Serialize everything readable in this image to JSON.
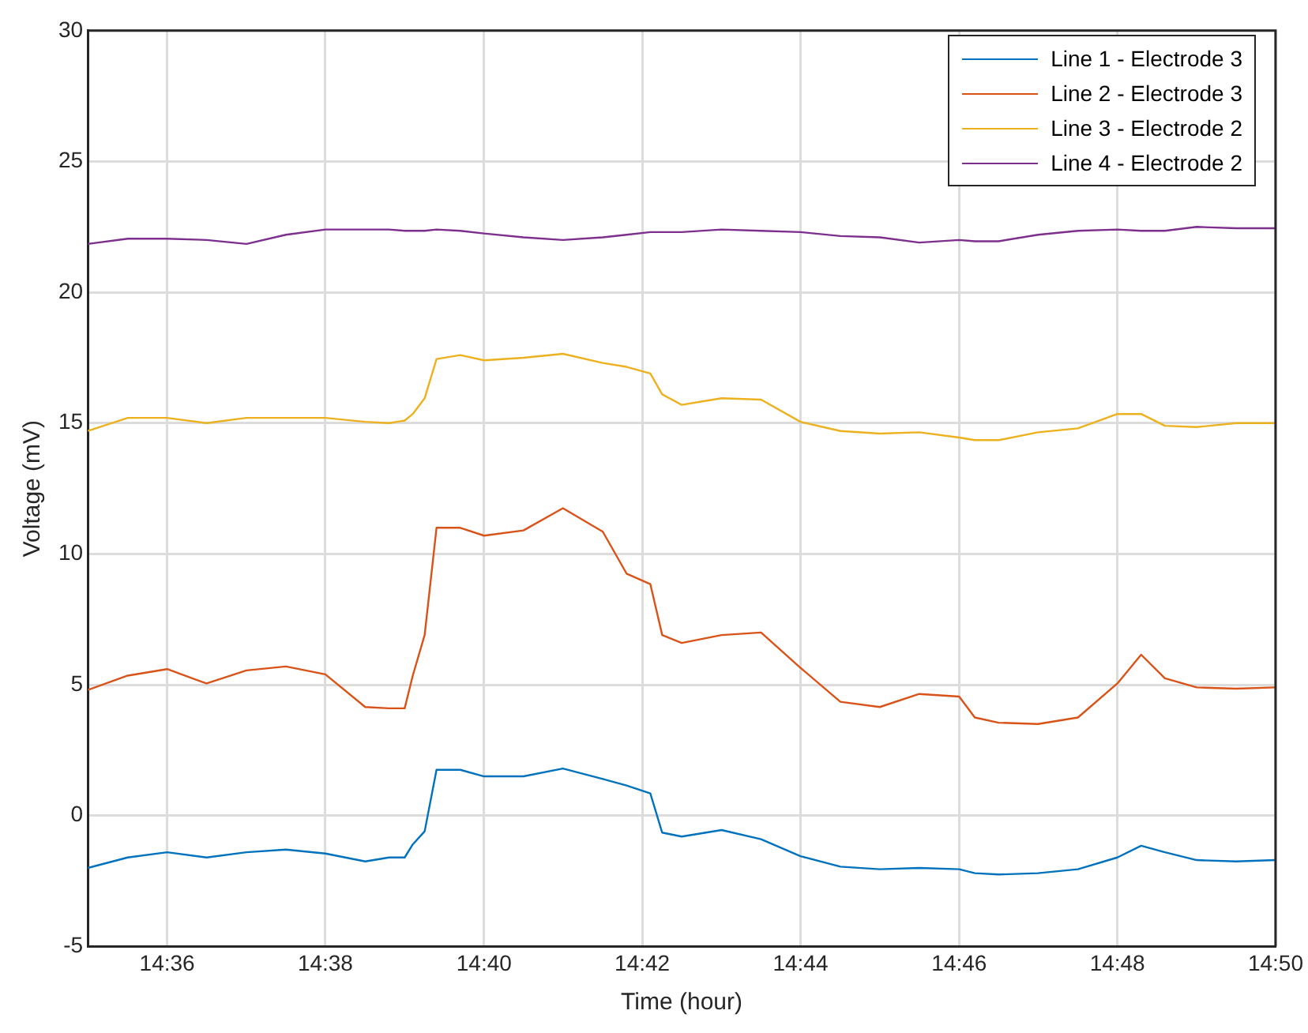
{
  "chart_data": {
    "type": "line",
    "xlabel": "Time (hour)",
    "ylabel": "Voltage (mV)",
    "x": [
      14.5833,
      14.5917,
      14.6,
      14.6083,
      14.6167,
      14.625,
      14.6333,
      14.6417,
      14.6467,
      14.65,
      14.6517,
      14.6542,
      14.6567,
      14.6617,
      14.6667,
      14.675,
      14.6833,
      14.6917,
      14.6967,
      14.7017,
      14.7042,
      14.7083,
      14.7167,
      14.725,
      14.7333,
      14.7417,
      14.75,
      14.7583,
      14.7667,
      14.77,
      14.775,
      14.7833,
      14.7917,
      14.8,
      14.805,
      14.81,
      14.8167,
      14.825,
      14.8333
    ],
    "series": [
      {
        "name": "Line 1 - Electrode 3",
        "color": "#0072bd",
        "values": [
          -2.0,
          -1.6,
          -1.4,
          -1.6,
          -1.4,
          -1.3,
          -1.45,
          -1.75,
          -1.6,
          -1.6,
          -1.1,
          -0.6,
          1.75,
          1.75,
          1.5,
          1.5,
          1.8,
          1.4,
          1.15,
          0.85,
          -0.65,
          -0.8,
          -0.55,
          -0.9,
          -1.55,
          -1.95,
          -2.05,
          -2.0,
          -2.05,
          -2.2,
          -2.25,
          -2.2,
          -2.05,
          -1.6,
          -1.15,
          -1.4,
          -1.7,
          -1.75,
          -1.7
        ]
      },
      {
        "name": "Line 2 - Electrode 3",
        "color": "#d95319",
        "values": [
          4.8,
          5.35,
          5.6,
          5.05,
          5.55,
          5.7,
          5.4,
          4.15,
          4.1,
          4.1,
          5.35,
          6.9,
          11.0,
          11.0,
          10.7,
          10.9,
          11.75,
          10.85,
          9.25,
          8.85,
          6.9,
          6.6,
          6.9,
          7.0,
          5.65,
          4.35,
          4.15,
          4.65,
          4.55,
          3.75,
          3.55,
          3.5,
          3.75,
          5.05,
          6.15,
          5.25,
          4.9,
          4.85,
          4.9
        ]
      },
      {
        "name": "Line 3 - Electrode 2",
        "color": "#edb120",
        "values": [
          14.7,
          15.2,
          15.2,
          15.0,
          15.2,
          15.2,
          15.2,
          15.05,
          15.0,
          15.1,
          15.35,
          15.95,
          17.45,
          17.6,
          17.4,
          17.5,
          17.65,
          17.3,
          17.15,
          16.9,
          16.1,
          15.7,
          15.95,
          15.9,
          15.05,
          14.7,
          14.6,
          14.65,
          14.45,
          14.35,
          14.35,
          14.65,
          14.8,
          15.35,
          15.35,
          14.9,
          14.85,
          15.0,
          15.0
        ]
      },
      {
        "name": "Line 4 - Electrode 2",
        "color": "#7e2f8e",
        "values": [
          21.85,
          22.05,
          22.05,
          22.0,
          21.85,
          22.2,
          22.4,
          22.4,
          22.4,
          22.35,
          22.35,
          22.35,
          22.4,
          22.35,
          22.25,
          22.1,
          22.0,
          22.1,
          22.2,
          22.3,
          22.3,
          22.3,
          22.4,
          22.35,
          22.3,
          22.15,
          22.1,
          21.9,
          22.0,
          21.95,
          21.95,
          22.2,
          22.35,
          22.4,
          22.35,
          22.35,
          22.5,
          22.45,
          22.45
        ]
      }
    ],
    "xlim": [
      14.5833,
      14.8333
    ],
    "xticks": [
      {
        "value": 14.6,
        "label": "14:36"
      },
      {
        "value": 14.6333,
        "label": "14:38"
      },
      {
        "value": 14.6667,
        "label": "14:40"
      },
      {
        "value": 14.7,
        "label": "14:42"
      },
      {
        "value": 14.7333,
        "label": "14:44"
      },
      {
        "value": 14.7667,
        "label": "14:46"
      },
      {
        "value": 14.8,
        "label": "14:48"
      },
      {
        "value": 14.8333,
        "label": "14:50"
      }
    ],
    "ylim": [
      -5,
      30
    ],
    "yticks": [
      -5,
      0,
      5,
      10,
      15,
      20,
      25,
      30
    ],
    "grid": true,
    "legend": "top right",
    "marker": "none",
    "line_style": "solid"
  }
}
